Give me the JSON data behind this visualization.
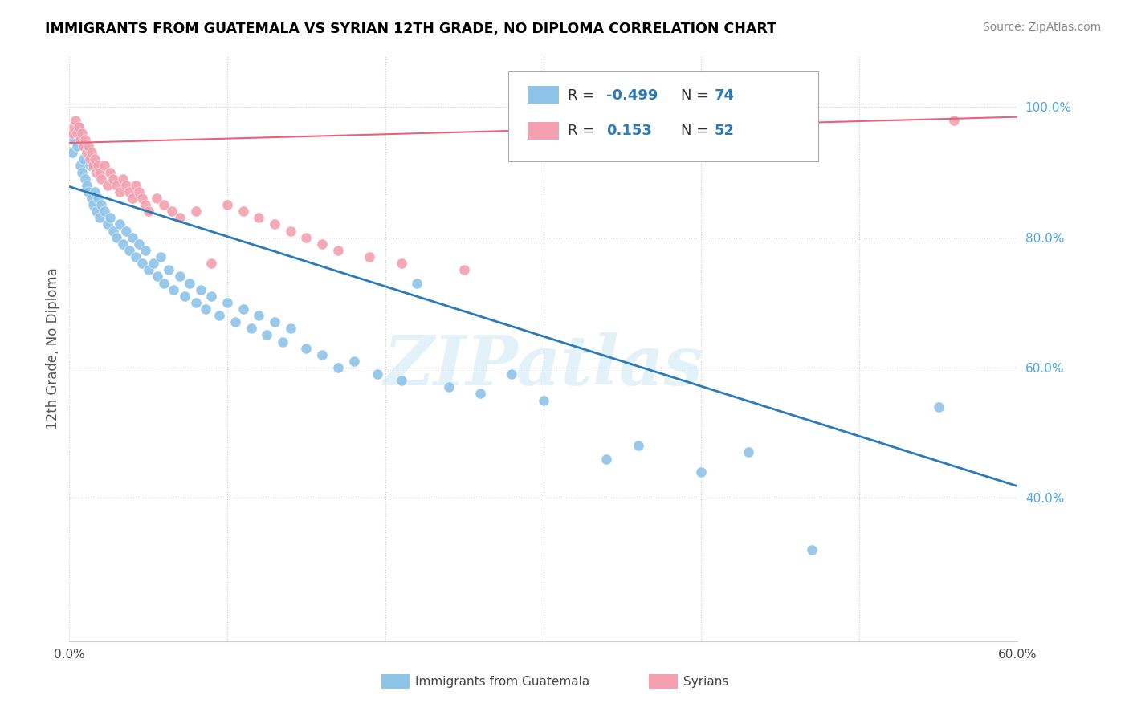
{
  "title": "IMMIGRANTS FROM GUATEMALA VS SYRIAN 12TH GRADE, NO DIPLOMA CORRELATION CHART",
  "source": "Source: ZipAtlas.com",
  "ylabel": "12th Grade, No Diploma",
  "color_guatemala": "#8ec4e8",
  "color_syrian": "#f4a0b0",
  "trendline_guatemala_color": "#2b7bba",
  "trendline_syrian_color": "#e8607a",
  "watermark": "ZIPatlas",
  "xmin": 0.0,
  "xmax": 0.6,
  "ymin": 0.18,
  "ymax": 1.08,
  "yticks_right": [
    0.4,
    0.6,
    0.8,
    1.0
  ],
  "yticklabels_right": [
    "40.0%",
    "60.0%",
    "80.0%",
    "100.0%"
  ],
  "guat_trendline_x0": 0.0,
  "guat_trendline_y0": 0.878,
  "guat_trendline_x1": 0.6,
  "guat_trendline_y1": 0.418,
  "syr_trendline_x0": 0.0,
  "syr_trendline_y0": 0.945,
  "syr_trendline_x1": 0.6,
  "syr_trendline_y1": 0.985,
  "guatemala_x": [
    0.002,
    0.003,
    0.004,
    0.005,
    0.006,
    0.007,
    0.008,
    0.009,
    0.01,
    0.011,
    0.012,
    0.013,
    0.014,
    0.015,
    0.016,
    0.017,
    0.018,
    0.019,
    0.02,
    0.022,
    0.024,
    0.026,
    0.028,
    0.03,
    0.032,
    0.034,
    0.036,
    0.038,
    0.04,
    0.042,
    0.044,
    0.046,
    0.048,
    0.05,
    0.053,
    0.056,
    0.058,
    0.06,
    0.063,
    0.066,
    0.07,
    0.073,
    0.076,
    0.08,
    0.083,
    0.086,
    0.09,
    0.095,
    0.1,
    0.105,
    0.11,
    0.115,
    0.12,
    0.125,
    0.13,
    0.135,
    0.14,
    0.15,
    0.16,
    0.17,
    0.18,
    0.195,
    0.21,
    0.22,
    0.24,
    0.26,
    0.28,
    0.3,
    0.34,
    0.36,
    0.4,
    0.43,
    0.47,
    0.55
  ],
  "guatemala_y": [
    0.93,
    0.95,
    0.96,
    0.94,
    0.97,
    0.91,
    0.9,
    0.92,
    0.89,
    0.88,
    0.87,
    0.91,
    0.86,
    0.85,
    0.87,
    0.84,
    0.86,
    0.83,
    0.85,
    0.84,
    0.82,
    0.83,
    0.81,
    0.8,
    0.82,
    0.79,
    0.81,
    0.78,
    0.8,
    0.77,
    0.79,
    0.76,
    0.78,
    0.75,
    0.76,
    0.74,
    0.77,
    0.73,
    0.75,
    0.72,
    0.74,
    0.71,
    0.73,
    0.7,
    0.72,
    0.69,
    0.71,
    0.68,
    0.7,
    0.67,
    0.69,
    0.66,
    0.68,
    0.65,
    0.67,
    0.64,
    0.66,
    0.63,
    0.62,
    0.6,
    0.61,
    0.59,
    0.58,
    0.73,
    0.57,
    0.56,
    0.59,
    0.55,
    0.46,
    0.48,
    0.44,
    0.47,
    0.32,
    0.54
  ],
  "syrian_x": [
    0.002,
    0.003,
    0.004,
    0.005,
    0.006,
    0.007,
    0.008,
    0.009,
    0.01,
    0.011,
    0.012,
    0.013,
    0.014,
    0.015,
    0.016,
    0.017,
    0.018,
    0.019,
    0.02,
    0.022,
    0.024,
    0.026,
    0.028,
    0.03,
    0.032,
    0.034,
    0.036,
    0.038,
    0.04,
    0.042,
    0.044,
    0.046,
    0.048,
    0.05,
    0.055,
    0.06,
    0.065,
    0.07,
    0.08,
    0.09,
    0.1,
    0.11,
    0.12,
    0.13,
    0.14,
    0.15,
    0.16,
    0.17,
    0.19,
    0.21,
    0.25,
    0.56
  ],
  "syrian_y": [
    0.96,
    0.97,
    0.98,
    0.96,
    0.97,
    0.95,
    0.96,
    0.94,
    0.95,
    0.93,
    0.94,
    0.92,
    0.93,
    0.91,
    0.92,
    0.9,
    0.91,
    0.9,
    0.89,
    0.91,
    0.88,
    0.9,
    0.89,
    0.88,
    0.87,
    0.89,
    0.88,
    0.87,
    0.86,
    0.88,
    0.87,
    0.86,
    0.85,
    0.84,
    0.86,
    0.85,
    0.84,
    0.83,
    0.84,
    0.76,
    0.85,
    0.84,
    0.83,
    0.82,
    0.81,
    0.8,
    0.79,
    0.78,
    0.77,
    0.76,
    0.75,
    0.98
  ]
}
